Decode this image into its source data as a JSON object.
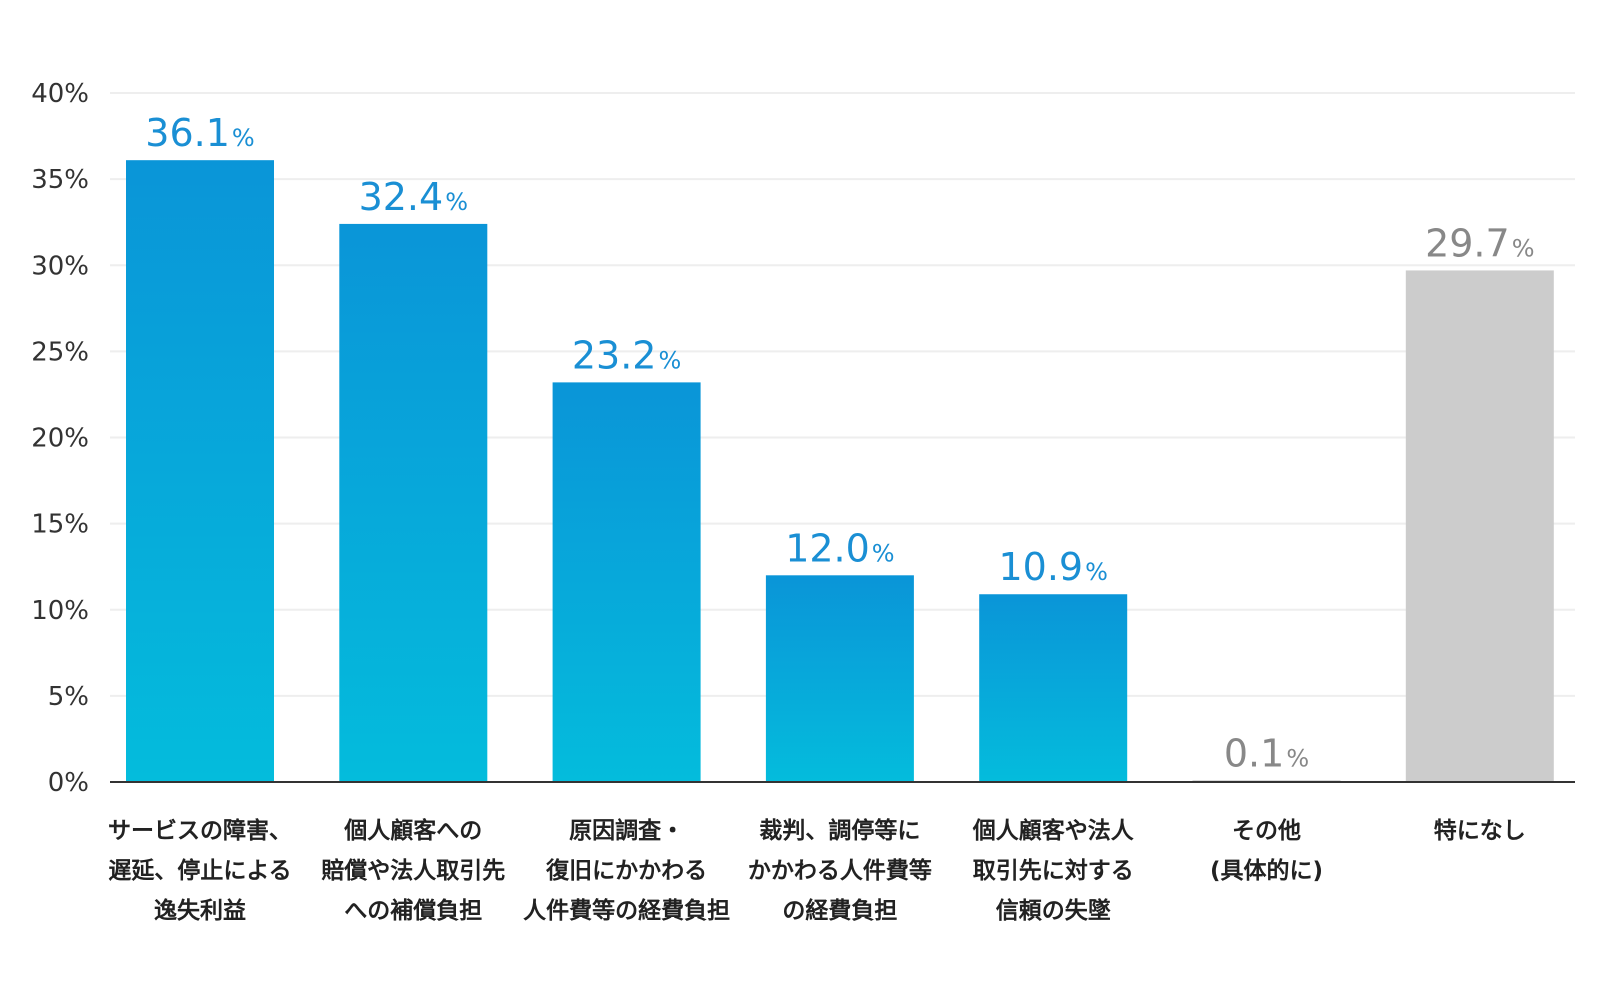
{
  "chart_data": {
    "type": "bar",
    "categories": [
      [
        "サービスの障害、",
        "遅延、停止による",
        "逸失利益"
      ],
      [
        "個人顧客への",
        "賠償や法人取引先",
        "への補償負担"
      ],
      [
        "原因調査・",
        "復旧にかかわる",
        "人件費等の経費負担"
      ],
      [
        "裁判、調停等に",
        "かかわる人件費等",
        "の経費負担"
      ],
      [
        "個人顧客や法人",
        "取引先に対する",
        "信頼の失墜"
      ],
      [
        "その他",
        "(具体的に)"
      ],
      [
        "特になし"
      ]
    ],
    "values": [
      36.1,
      32.4,
      23.2,
      12.0,
      10.9,
      0.1,
      29.7
    ],
    "value_labels": [
      "36.1",
      "32.4",
      "23.2",
      "12.0",
      "10.9",
      "0.1",
      "29.7"
    ],
    "value_unit": "%",
    "bar_style": [
      "blue",
      "blue",
      "blue",
      "blue",
      "blue",
      "gray",
      "gray"
    ],
    "ylim": [
      0,
      40
    ],
    "yticks": [
      0,
      5,
      10,
      15,
      20,
      25,
      30,
      35,
      40
    ],
    "ytick_labels": [
      "0%",
      "5%",
      "10%",
      "15%",
      "20%",
      "25%",
      "30%",
      "35%",
      "40%"
    ],
    "grid": true,
    "colors": {
      "blue_top": "#0a95d8",
      "blue_bottom": "#04bcdc",
      "blue_label": "#1a8fd4",
      "gray_bar": "#cccccc",
      "gray_label": "#888888",
      "grid": "#eeeeee",
      "axis": "#333333"
    }
  }
}
